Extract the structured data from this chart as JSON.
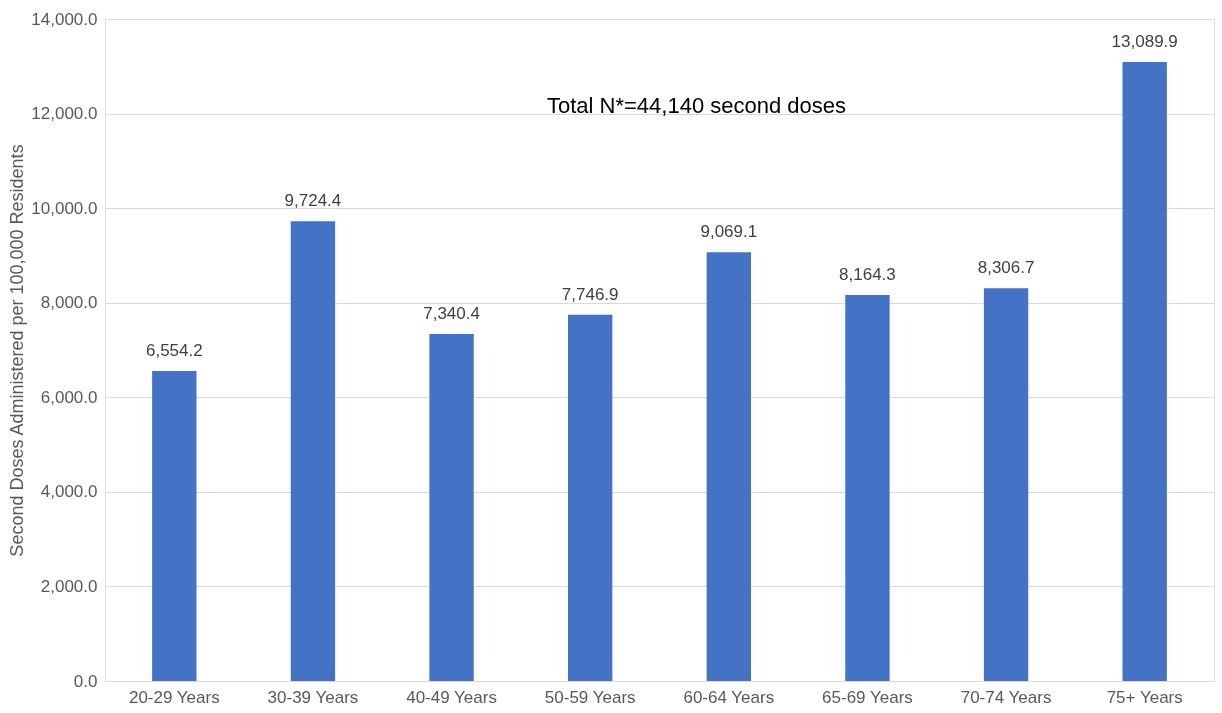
{
  "chart_data": {
    "type": "bar",
    "ylabel": "Second Doses Administered per 100,000 Residents",
    "categories": [
      "20-29 Years",
      "30-39 Years",
      "40-49 Years",
      "50-59 Years",
      "60-64 Years",
      "65-69 Years",
      "70-74 Years",
      "75+ Years"
    ],
    "values": [
      6554.2,
      9724.4,
      7340.4,
      7746.9,
      9069.1,
      8164.3,
      8306.7,
      13089.9
    ],
    "value_labels": [
      "6,554.2",
      "9,724.4",
      "7,340.4",
      "7,746.9",
      "9,069.1",
      "8,164.3",
      "8,306.7",
      "13,089.9"
    ],
    "color": "#4472c4",
    "ylim": [
      0,
      14000
    ],
    "yticks": [
      {
        "value": 0,
        "label": "0.0"
      },
      {
        "value": 2000,
        "label": "2,000.0"
      },
      {
        "value": 4000,
        "label": "4,000.0"
      },
      {
        "value": 6000,
        "label": "6,000.0"
      },
      {
        "value": 8000,
        "label": "8,000.0"
      },
      {
        "value": 10000,
        "label": "10,000.0"
      },
      {
        "value": 12000,
        "label": "12,000.0"
      },
      {
        "value": 14000,
        "label": "14,000.0"
      }
    ],
    "grid": "y",
    "annotations": [
      "Total N*=44,140 second doses"
    ]
  }
}
